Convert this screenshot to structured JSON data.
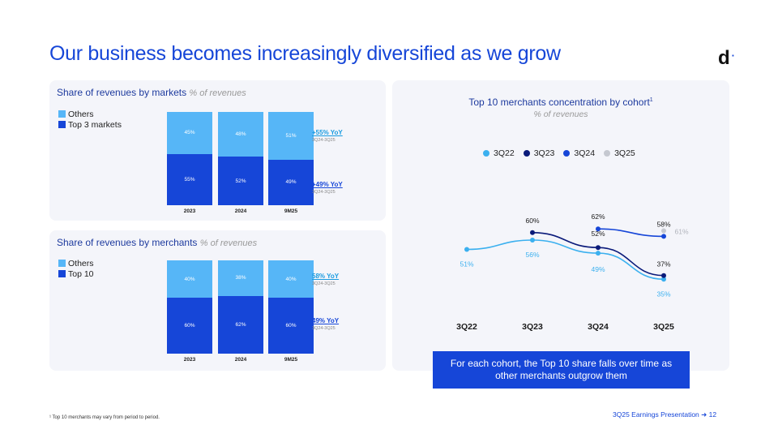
{
  "title": "Our business becomes increasingly diversified as we grow",
  "logo": {
    "letter": "d",
    "dot": "·"
  },
  "colors": {
    "light": "#56b6f7",
    "dark": "#1646d8",
    "navy": "#0a1a7a",
    "grey": "#c5c8d0",
    "accent": "#1646d8"
  },
  "markets": {
    "title": "Share of revenues by markets",
    "subtitle": "% of revenues",
    "legend": [
      "Others",
      "Top 3 markets"
    ],
    "yoy_top": {
      "label": "+55% YoY",
      "sub": "3Q24-3Q25"
    },
    "yoy_bottom": {
      "label": "+49% YoY",
      "sub": "3Q24-3Q25"
    }
  },
  "merchants": {
    "title": "Share of revenues by merchants",
    "subtitle": "% of revenues",
    "legend": [
      "Others",
      "Top 10"
    ],
    "yoy_top": {
      "label": "58% YoY",
      "sub": "3Q24-3Q25"
    },
    "yoy_bottom": {
      "label": "49% YoY",
      "sub": "3Q24-3Q25"
    }
  },
  "cohort": {
    "title": "Top 10 merchants concentration by cohort",
    "title_sup": "1",
    "subtitle": "% of revenues",
    "callout": "For each cohort, the Top 10 share falls over time as other merchants outgrow them"
  },
  "chart_data": [
    {
      "type": "bar",
      "title": "Share of revenues by markets",
      "categories": [
        "2023",
        "2024",
        "9M25"
      ],
      "stacked": true,
      "series": [
        {
          "name": "Top 3 markets",
          "values": [
            55,
            52,
            49
          ],
          "labels": [
            "55%",
            "52%",
            "49%"
          ]
        },
        {
          "name": "Others",
          "values": [
            45,
            48,
            51
          ],
          "labels": [
            "45%",
            "48%",
            "51%"
          ]
        }
      ]
    },
    {
      "type": "bar",
      "title": "Share of revenues by merchants",
      "categories": [
        "2023",
        "2024",
        "9M25"
      ],
      "stacked": true,
      "series": [
        {
          "name": "Top 10",
          "values": [
            60,
            62,
            60
          ],
          "labels": [
            "60%",
            "62%",
            "60%"
          ]
        },
        {
          "name": "Others",
          "values": [
            40,
            38,
            40
          ],
          "labels": [
            "40%",
            "38%",
            "40%"
          ]
        }
      ]
    },
    {
      "type": "line",
      "title": "Top 10 merchants concentration by cohort",
      "categories": [
        "3Q22",
        "3Q23",
        "3Q24",
        "3Q25"
      ],
      "ylim": [
        20,
        75
      ],
      "series": [
        {
          "name": "3Q22",
          "values": [
            51,
            56,
            49,
            35
          ],
          "labels": [
            "51%",
            "56%",
            "49%",
            "35%"
          ]
        },
        {
          "name": "3Q23",
          "values": [
            null,
            60,
            52,
            37
          ],
          "labels": [
            null,
            "60%",
            "52%",
            "37%"
          ]
        },
        {
          "name": "3Q24",
          "values": [
            null,
            null,
            62,
            58
          ],
          "labels": [
            null,
            null,
            "62%",
            "58%"
          ]
        },
        {
          "name": "3Q25",
          "values": [
            null,
            null,
            null,
            61
          ],
          "labels": [
            null,
            null,
            null,
            "61%"
          ]
        }
      ]
    }
  ],
  "footnote": "¹ Top 10 merchants may vary from period to period.",
  "footer": "3Q25 Earnings Presentation ➜ 12"
}
